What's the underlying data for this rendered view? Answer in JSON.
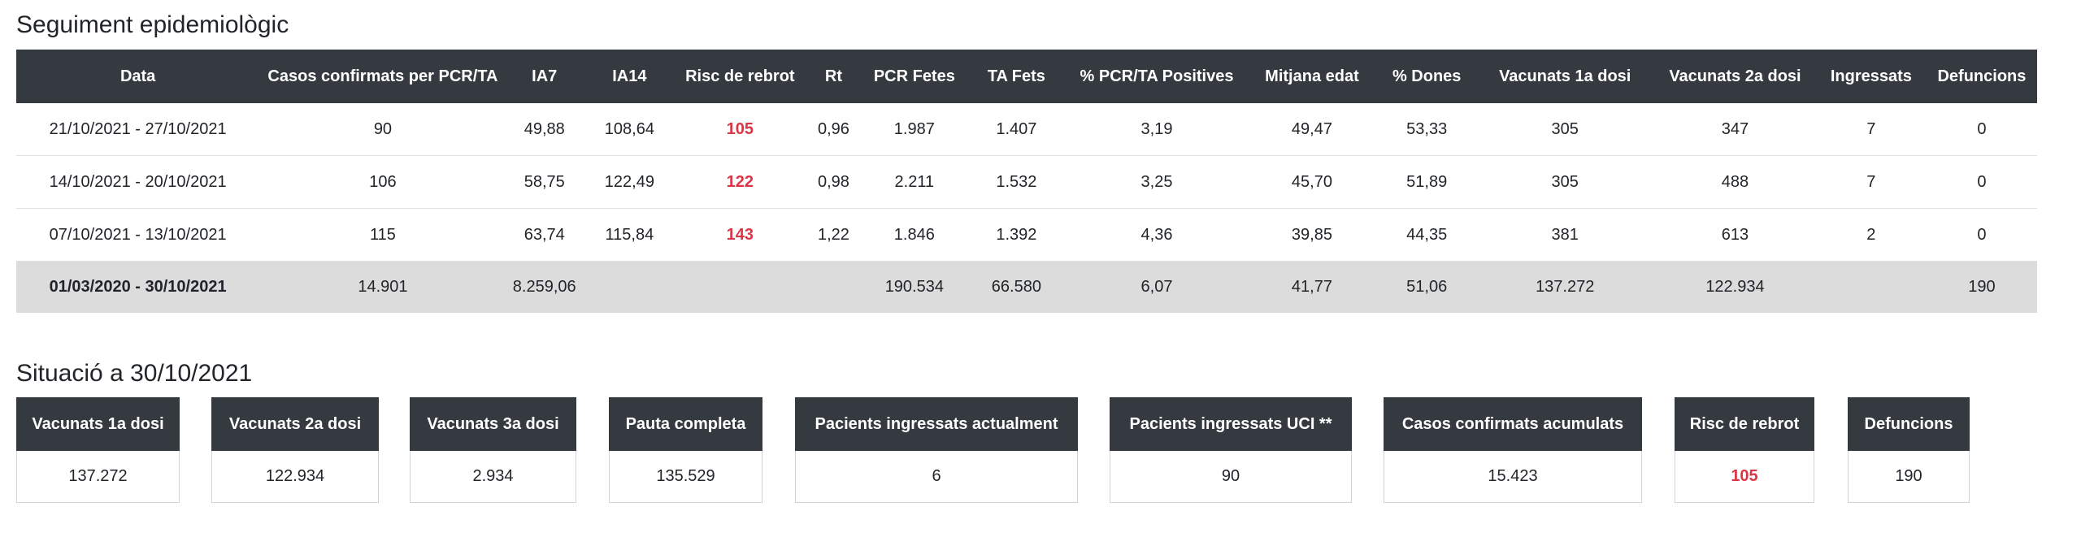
{
  "section1": {
    "title": "Seguiment epidemiològic"
  },
  "table": {
    "headers": [
      "Data",
      "Casos confirmats per PCR/TA",
      "IA7",
      "IA14",
      "Risc de rebrot",
      "Rt",
      "PCR Fetes",
      "TA Fets",
      "% PCR/TA Positives",
      "Mitjana edat",
      "% Dones",
      "Vacunats 1a dosi",
      "Vacunats 2a dosi",
      "Ingressats",
      "Defuncions"
    ],
    "rows": [
      [
        "21/10/2021 - 27/10/2021",
        "90",
        "49,88",
        "108,64",
        "105",
        "0,96",
        "1.987",
        "1.407",
        "3,19",
        "49,47",
        "53,33",
        "305",
        "347",
        "7",
        "0"
      ],
      [
        "14/10/2021 - 20/10/2021",
        "106",
        "58,75",
        "122,49",
        "122",
        "0,98",
        "2.211",
        "1.532",
        "3,25",
        "45,70",
        "51,89",
        "305",
        "488",
        "7",
        "0"
      ],
      [
        "07/10/2021 - 13/10/2021",
        "115",
        "63,74",
        "115,84",
        "143",
        "1,22",
        "1.846",
        "1.392",
        "4,36",
        "39,85",
        "44,35",
        "381",
        "613",
        "2",
        "0"
      ]
    ],
    "total": [
      "01/03/2020 - 30/10/2021",
      "14.901",
      "8.259,06",
      "",
      "",
      "",
      "190.534",
      "66.580",
      "6,07",
      "41,77",
      "51,06",
      "137.272",
      "122.934",
      "",
      "190"
    ]
  },
  "section2": {
    "title": "Situació a 30/10/2021"
  },
  "cards": [
    {
      "label": "Vacunats 1a dosi",
      "value": "137.272"
    },
    {
      "label": "Vacunats 2a dosi",
      "value": "122.934"
    },
    {
      "label": "Vacunats 3a dosi",
      "value": "2.934"
    },
    {
      "label": "Pauta completa",
      "value": "135.529"
    },
    {
      "label": "Pacients ingressats actualment",
      "value": "6"
    },
    {
      "label": "Pacients ingressats UCI **",
      "value": "90"
    },
    {
      "label": "Casos confirmats acumulats",
      "value": "15.423"
    },
    {
      "label": "Risc de rebrot",
      "value": "105"
    },
    {
      "label": "Defuncions",
      "value": "190"
    }
  ],
  "colors": {
    "header_bg": "#343a40",
    "risk": "#dc3545",
    "total_bg": "#dcdcdc"
  }
}
